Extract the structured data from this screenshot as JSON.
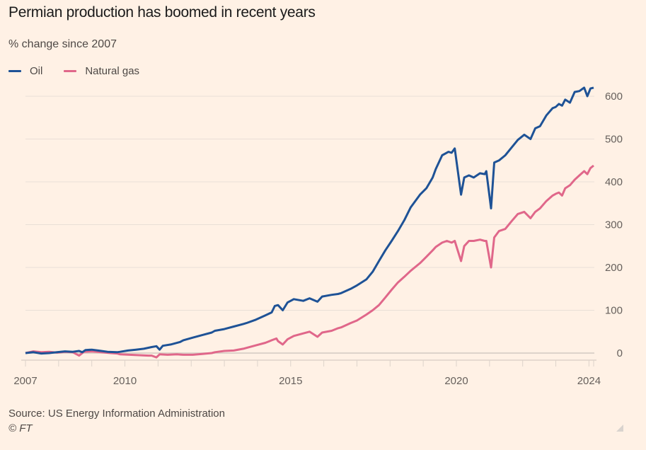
{
  "header": {
    "title": "Permian production has boomed in recent years",
    "subtitle": "% change since 2007"
  },
  "footer": {
    "source": "Source: US Energy Information Administration",
    "credit": "© FT"
  },
  "colors": {
    "background": "#fff1e5",
    "oil": "#1e5296",
    "gas": "#e0678a",
    "grid": "#e9dfd6",
    "axis": "#ddd3ca",
    "tick_text": "#66605c"
  },
  "chart_data": {
    "type": "line",
    "title": "Permian production has boomed in recent years",
    "subtitle": "% change since 2007",
    "xlabel": "",
    "ylabel": "% change since 2007",
    "xlim": [
      2007,
      2024.1
    ],
    "ylim": [
      -20,
      620
    ],
    "grid": true,
    "legend_position": "top-left",
    "x_tick_labels": [
      "2007",
      "2010",
      "2015",
      "2020",
      "2024"
    ],
    "x_tick_values": [
      2007,
      2010,
      2015,
      2020,
      2024
    ],
    "x_minor_ticks": [
      2007,
      2008,
      2009,
      2010,
      2011,
      2012,
      2013,
      2014,
      2015,
      2016,
      2017,
      2018,
      2019,
      2020,
      2021,
      2022,
      2023,
      2024,
      2024.25
    ],
    "y_tick_labels": [
      "0",
      "100",
      "200",
      "300",
      "400",
      "500",
      "600"
    ],
    "y_tick_values": [
      0,
      100,
      200,
      300,
      400,
      500,
      600
    ],
    "series": [
      {
        "name": "Oil",
        "color": "#1e5296",
        "points": [
          [
            2007.0,
            0
          ],
          [
            2007.25,
            2
          ],
          [
            2007.5,
            -1
          ],
          [
            2007.75,
            0
          ],
          [
            2008.0,
            2
          ],
          [
            2008.25,
            4
          ],
          [
            2008.5,
            3
          ],
          [
            2008.7,
            5
          ],
          [
            2008.8,
            2
          ],
          [
            2008.9,
            7
          ],
          [
            2009.1,
            8
          ],
          [
            2009.3,
            6
          ],
          [
            2009.6,
            3
          ],
          [
            2009.9,
            2
          ],
          [
            2010.0,
            3
          ],
          [
            2010.25,
            6
          ],
          [
            2010.5,
            8
          ],
          [
            2010.75,
            10
          ],
          [
            2011.0,
            14
          ],
          [
            2011.15,
            16
          ],
          [
            2011.25,
            8
          ],
          [
            2011.35,
            17
          ],
          [
            2011.6,
            20
          ],
          [
            2011.9,
            26
          ],
          [
            2012.0,
            30
          ],
          [
            2012.3,
            36
          ],
          [
            2012.6,
            42
          ],
          [
            2012.9,
            48
          ],
          [
            2013.0,
            52
          ],
          [
            2013.3,
            56
          ],
          [
            2013.6,
            62
          ],
          [
            2013.9,
            68
          ],
          [
            2014.0,
            70
          ],
          [
            2014.3,
            78
          ],
          [
            2014.6,
            88
          ],
          [
            2014.8,
            95
          ],
          [
            2014.9,
            110
          ],
          [
            2015.0,
            112
          ],
          [
            2015.15,
            100
          ],
          [
            2015.3,
            118
          ],
          [
            2015.5,
            126
          ],
          [
            2015.8,
            122
          ],
          [
            2016.0,
            128
          ],
          [
            2016.25,
            120
          ],
          [
            2016.4,
            132
          ],
          [
            2016.7,
            136
          ],
          [
            2016.9,
            138
          ],
          [
            2017.0,
            140
          ],
          [
            2017.3,
            150
          ],
          [
            2017.5,
            158
          ],
          [
            2017.8,
            172
          ],
          [
            2018.0,
            190
          ],
          [
            2018.2,
            215
          ],
          [
            2018.4,
            240
          ],
          [
            2018.6,
            262
          ],
          [
            2018.8,
            285
          ],
          [
            2019.0,
            310
          ],
          [
            2019.2,
            340
          ],
          [
            2019.5,
            370
          ],
          [
            2019.7,
            385
          ],
          [
            2019.9,
            410
          ],
          [
            2020.0,
            430
          ],
          [
            2020.2,
            462
          ],
          [
            2020.4,
            470
          ],
          [
            2020.5,
            468
          ],
          [
            2020.6,
            478
          ],
          [
            2020.8,
            370
          ],
          [
            2020.9,
            410
          ],
          [
            2021.05,
            415
          ],
          [
            2021.2,
            410
          ],
          [
            2021.4,
            420
          ],
          [
            2021.55,
            418
          ],
          [
            2021.6,
            425
          ],
          [
            2021.75,
            338
          ],
          [
            2021.85,
            445
          ],
          [
            2022.0,
            450
          ],
          [
            2022.2,
            462
          ],
          [
            2022.4,
            480
          ],
          [
            2022.6,
            498
          ],
          [
            2022.8,
            510
          ],
          [
            2023.0,
            500
          ],
          [
            2023.15,
            525
          ],
          [
            2023.3,
            530
          ],
          [
            2023.5,
            555
          ],
          [
            2023.7,
            572
          ],
          [
            2023.8,
            575
          ],
          [
            2023.9,
            582
          ],
          [
            2024.0,
            578
          ],
          [
            2024.1,
            592
          ],
          [
            2024.25,
            585
          ],
          [
            2024.4,
            610
          ],
          [
            2024.55,
            612
          ],
          [
            2024.7,
            620
          ],
          [
            2024.8,
            600
          ],
          [
            2024.9,
            618
          ],
          [
            2025.0,
            620
          ]
        ]
      },
      {
        "name": "Natural gas",
        "color": "#e0678a",
        "points": [
          [
            2007.0,
            0
          ],
          [
            2007.25,
            4
          ],
          [
            2007.5,
            2
          ],
          [
            2007.75,
            3
          ],
          [
            2008.0,
            1
          ],
          [
            2008.25,
            3
          ],
          [
            2008.5,
            2
          ],
          [
            2008.7,
            -6
          ],
          [
            2008.85,
            3
          ],
          [
            2009.1,
            4
          ],
          [
            2009.4,
            2
          ],
          [
            2009.7,
            0
          ],
          [
            2009.9,
            -1
          ],
          [
            2010.0,
            -3
          ],
          [
            2010.3,
            -4
          ],
          [
            2010.6,
            -5
          ],
          [
            2010.9,
            -6
          ],
          [
            2011.0,
            -6
          ],
          [
            2011.15,
            -10
          ],
          [
            2011.25,
            -3
          ],
          [
            2011.5,
            -4
          ],
          [
            2011.8,
            -3
          ],
          [
            2012.0,
            -4
          ],
          [
            2012.3,
            -4
          ],
          [
            2012.6,
            -2
          ],
          [
            2012.9,
            0
          ],
          [
            2013.0,
            2
          ],
          [
            2013.3,
            5
          ],
          [
            2013.6,
            6
          ],
          [
            2013.9,
            10
          ],
          [
            2014.0,
            12
          ],
          [
            2014.3,
            18
          ],
          [
            2014.6,
            24
          ],
          [
            2014.8,
            30
          ],
          [
            2014.95,
            34
          ],
          [
            2015.0,
            28
          ],
          [
            2015.15,
            20
          ],
          [
            2015.3,
            32
          ],
          [
            2015.5,
            40
          ],
          [
            2015.8,
            46
          ],
          [
            2016.0,
            50
          ],
          [
            2016.25,
            38
          ],
          [
            2016.4,
            48
          ],
          [
            2016.7,
            52
          ],
          [
            2016.9,
            58
          ],
          [
            2017.0,
            60
          ],
          [
            2017.3,
            70
          ],
          [
            2017.5,
            76
          ],
          [
            2017.8,
            90
          ],
          [
            2018.0,
            100
          ],
          [
            2018.2,
            112
          ],
          [
            2018.4,
            130
          ],
          [
            2018.6,
            148
          ],
          [
            2018.8,
            165
          ],
          [
            2019.0,
            178
          ],
          [
            2019.2,
            192
          ],
          [
            2019.5,
            210
          ],
          [
            2019.7,
            225
          ],
          [
            2019.9,
            240
          ],
          [
            2020.0,
            248
          ],
          [
            2020.2,
            258
          ],
          [
            2020.35,
            262
          ],
          [
            2020.5,
            258
          ],
          [
            2020.6,
            262
          ],
          [
            2020.8,
            215
          ],
          [
            2020.9,
            250
          ],
          [
            2021.05,
            262
          ],
          [
            2021.2,
            262
          ],
          [
            2021.4,
            265
          ],
          [
            2021.55,
            262
          ],
          [
            2021.6,
            262
          ],
          [
            2021.75,
            200
          ],
          [
            2021.85,
            270
          ],
          [
            2022.0,
            285
          ],
          [
            2022.2,
            290
          ],
          [
            2022.4,
            308
          ],
          [
            2022.6,
            325
          ],
          [
            2022.8,
            330
          ],
          [
            2023.0,
            315
          ],
          [
            2023.15,
            330
          ],
          [
            2023.3,
            338
          ],
          [
            2023.5,
            355
          ],
          [
            2023.7,
            368
          ],
          [
            2023.8,
            372
          ],
          [
            2023.9,
            375
          ],
          [
            2024.0,
            368
          ],
          [
            2024.1,
            385
          ],
          [
            2024.25,
            392
          ],
          [
            2024.4,
            405
          ],
          [
            2024.55,
            415
          ],
          [
            2024.7,
            425
          ],
          [
            2024.8,
            418
          ],
          [
            2024.9,
            432
          ],
          [
            2025.0,
            438
          ]
        ]
      }
    ]
  }
}
